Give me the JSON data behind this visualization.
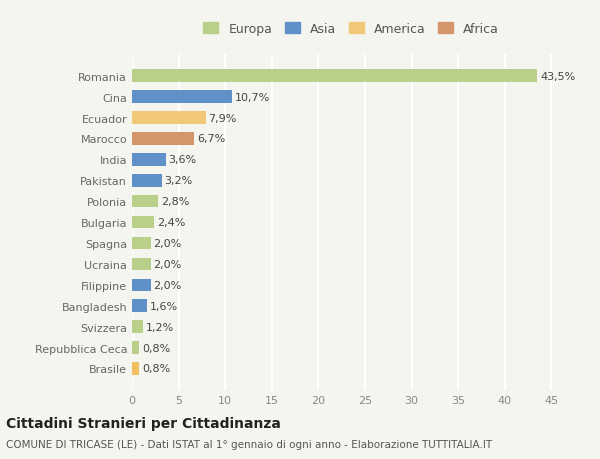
{
  "categories": [
    "Brasile",
    "Repubblica Ceca",
    "Svizzera",
    "Bangladesh",
    "Filippine",
    "Ucraina",
    "Spagna",
    "Bulgaria",
    "Polonia",
    "Pakistan",
    "India",
    "Marocco",
    "Ecuador",
    "Cina",
    "Romania"
  ],
  "values": [
    0.8,
    0.8,
    1.2,
    1.6,
    2.0,
    2.0,
    2.0,
    2.4,
    2.8,
    3.2,
    3.6,
    6.7,
    7.9,
    10.7,
    43.5
  ],
  "labels": [
    "0,8%",
    "0,8%",
    "1,2%",
    "1,6%",
    "2,0%",
    "2,0%",
    "2,0%",
    "2,4%",
    "2,8%",
    "3,2%",
    "3,6%",
    "6,7%",
    "7,9%",
    "10,7%",
    "43,5%"
  ],
  "colors": [
    "#f0c060",
    "#b8d08a",
    "#b8d08a",
    "#6090c8",
    "#6090c8",
    "#b8d08a",
    "#b8d08a",
    "#b8d08a",
    "#b8d08a",
    "#6090c8",
    "#6090c8",
    "#d4956a",
    "#f0c878",
    "#6090c8",
    "#b8d08a"
  ],
  "legend": [
    {
      "label": "Europa",
      "color": "#b8d08a"
    },
    {
      "label": "Asia",
      "color": "#6090c8"
    },
    {
      "label": "America",
      "color": "#f0c878"
    },
    {
      "label": "Africa",
      "color": "#d4956a"
    }
  ],
  "xlim": [
    0,
    47
  ],
  "xticks": [
    0,
    5,
    10,
    15,
    20,
    25,
    30,
    35,
    40,
    45
  ],
  "title1": "Cittadini Stranieri per Cittadinanza",
  "title2": "COMUNE DI TRICASE (LE) - Dati ISTAT al 1° gennaio di ogni anno - Elaborazione TUTTITALIA.IT",
  "background_color": "#f5f5f0",
  "grid_color": "#ffffff"
}
